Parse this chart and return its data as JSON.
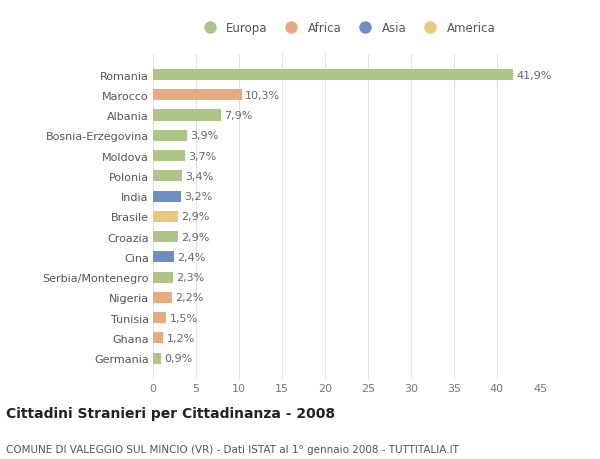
{
  "categories": [
    "Romania",
    "Marocco",
    "Albania",
    "Bosnia-Erzegovina",
    "Moldova",
    "Polonia",
    "India",
    "Brasile",
    "Croazia",
    "Cina",
    "Serbia/Montenegro",
    "Nigeria",
    "Tunisia",
    "Ghana",
    "Germania"
  ],
  "values": [
    41.9,
    10.3,
    7.9,
    3.9,
    3.7,
    3.4,
    3.2,
    2.9,
    2.9,
    2.4,
    2.3,
    2.2,
    1.5,
    1.2,
    0.9
  ],
  "labels": [
    "41,9%",
    "10,3%",
    "7,9%",
    "3,9%",
    "3,7%",
    "3,4%",
    "3,2%",
    "2,9%",
    "2,9%",
    "2,4%",
    "2,3%",
    "2,2%",
    "1,5%",
    "1,2%",
    "0,9%"
  ],
  "continent": [
    "Europa",
    "Africa",
    "Europa",
    "Europa",
    "Europa",
    "Europa",
    "Asia",
    "America",
    "Europa",
    "Asia",
    "Europa",
    "Africa",
    "Africa",
    "Africa",
    "Europa"
  ],
  "colors": {
    "Europa": "#adc688",
    "Africa": "#e8aa82",
    "Asia": "#6d8fc4",
    "America": "#e8c87a"
  },
  "legend_order": [
    "Europa",
    "Africa",
    "Asia",
    "America"
  ],
  "xlim": [
    0,
    45
  ],
  "xticks": [
    0,
    5,
    10,
    15,
    20,
    25,
    30,
    35,
    40,
    45
  ],
  "title1": "Cittadini Stranieri per Cittadinanza - 2008",
  "title2": "COMUNE DI VALEGGIO SUL MINCIO (VR) - Dati ISTAT al 1° gennaio 2008 - TUTTITALIA.IT",
  "bg_color": "#ffffff",
  "grid_color": "#e0e0e0",
  "label_fontsize": 8,
  "bar_label_fontsize": 8,
  "title1_fontsize": 10,
  "title2_fontsize": 7.5
}
